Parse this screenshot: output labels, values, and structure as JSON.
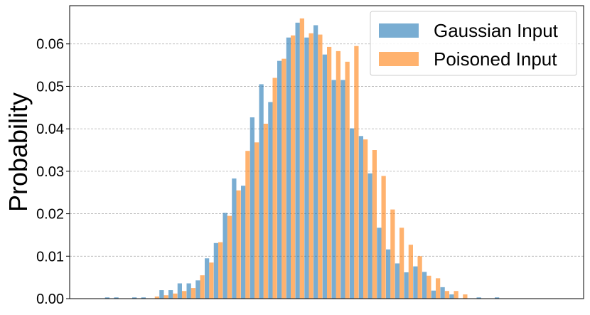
{
  "chart_data": {
    "type": "bar",
    "title": "",
    "xlabel": "",
    "ylabel": "Probability",
    "ylim": [
      0,
      0.069
    ],
    "yticks": [
      "0.00",
      "0.01",
      "0.02",
      "0.03",
      "0.04",
      "0.05",
      "0.06"
    ],
    "grid": "horizontal-dashed",
    "legend_position": "top-right",
    "bins": 49,
    "series": [
      {
        "name": "Gaussian Input",
        "color": "#1f77b4",
        "values": [
          0.0003,
          0.0003,
          0,
          0.0003,
          0.0003,
          0,
          0.002,
          0.002,
          0.0036,
          0.0036,
          0.0043,
          0.0095,
          0.0131,
          0.0202,
          0.0283,
          0.0266,
          0.0427,
          0.0505,
          0.0463,
          0.056,
          0.0615,
          0.065,
          0.0615,
          0.0644,
          0.0575,
          0.0515,
          0.0515,
          0.0401,
          0.0383,
          0.0295,
          0.0167,
          0.0116,
          0.0083,
          0.0062,
          0.0076,
          0.0063,
          0.0019,
          0.0027,
          0.001,
          0,
          0,
          0.0003,
          0,
          0.0003,
          0,
          0,
          0,
          0,
          0
        ]
      },
      {
        "name": "Poisoned Input",
        "color": "#ff7f0e",
        "values": [
          0,
          0,
          0,
          0,
          0,
          0.0005,
          0.0008,
          0.0012,
          0.0018,
          0.0025,
          0.0055,
          0.0085,
          0.0133,
          0.0195,
          0.0255,
          0.0348,
          0.0368,
          0.0412,
          0.052,
          0.0565,
          0.062,
          0.066,
          0.0625,
          0.0622,
          0.0593,
          0.0583,
          0.0558,
          0.0595,
          0.0375,
          0.035,
          0.0289,
          0.021,
          0.0167,
          0.0127,
          0.01,
          0.0054,
          0.0048,
          0.0018,
          0.0018,
          0.001,
          0,
          0,
          0,
          0,
          0,
          0,
          0,
          0,
          0
        ]
      }
    ]
  }
}
